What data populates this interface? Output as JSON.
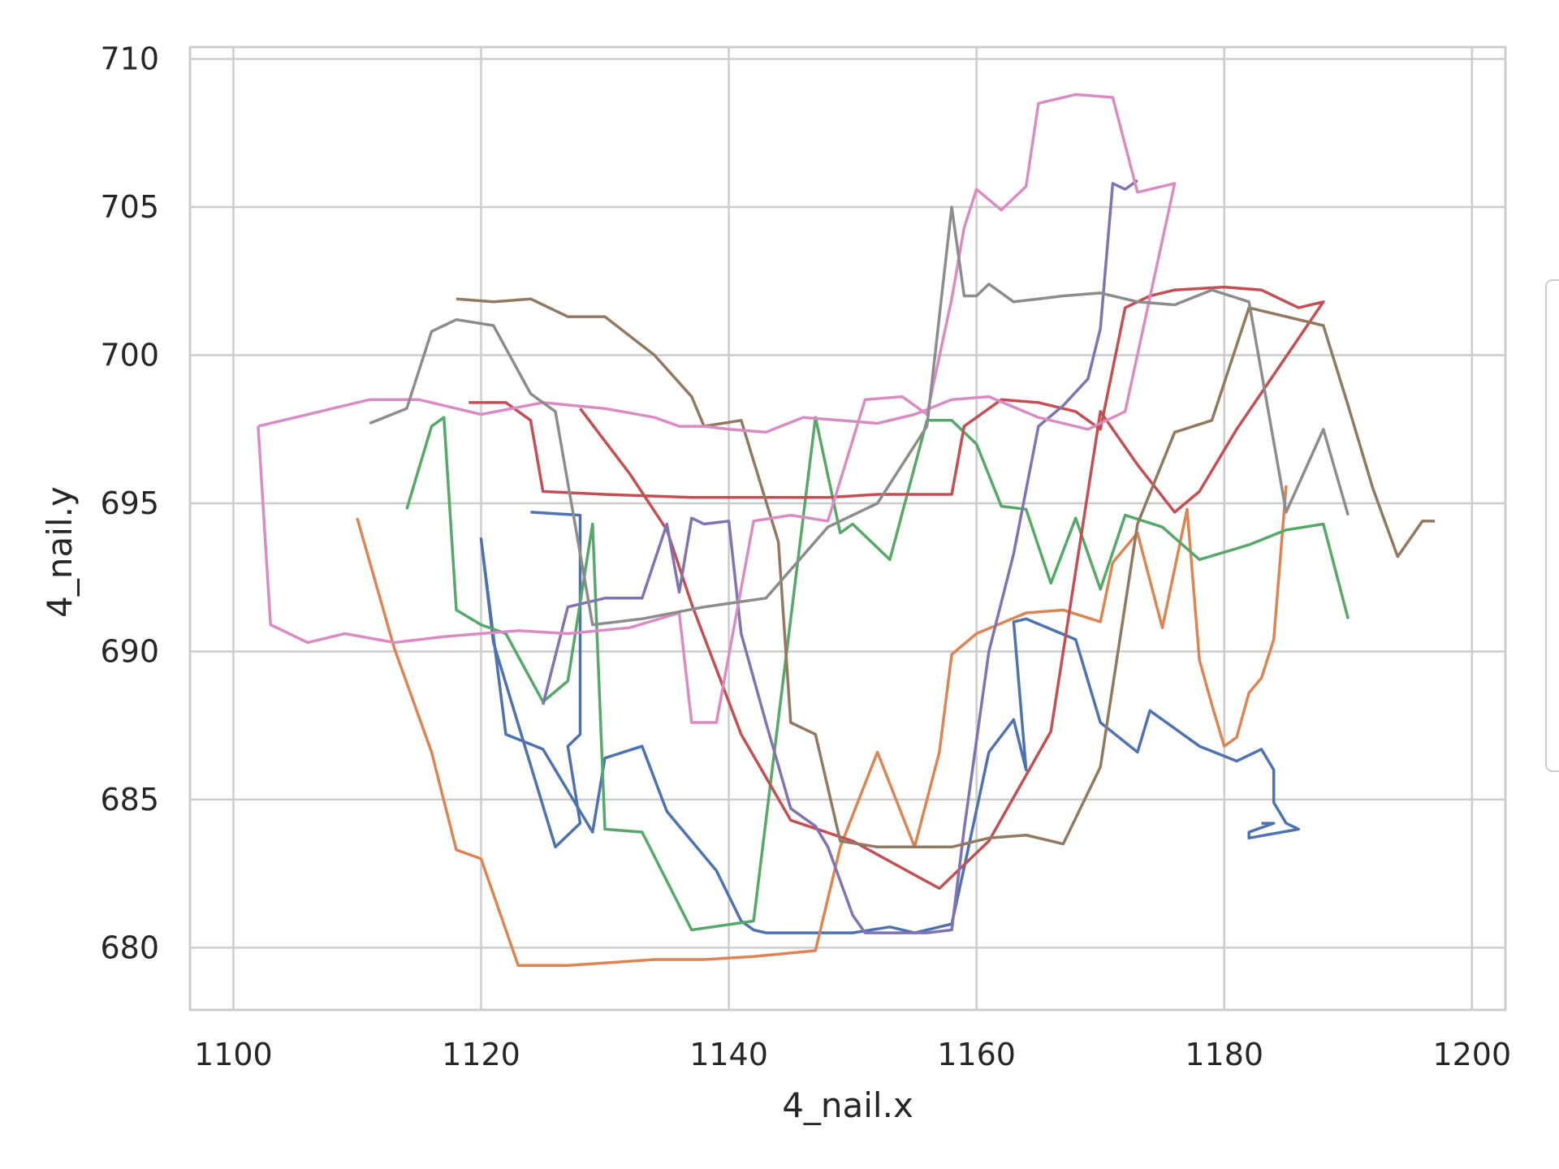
{
  "chart_data": {
    "type": "line",
    "title": "",
    "xlabel": "4_nail.x",
    "ylabel": "4_nail.y",
    "xlim": [
      1096.5,
      1202.7
    ],
    "ylim": [
      677.9,
      710.4
    ],
    "xticks": [
      1100,
      1120,
      1140,
      1160,
      1180,
      1200
    ],
    "yticks": [
      680,
      685,
      690,
      695,
      700,
      705,
      710
    ],
    "grid": true,
    "legend": "right (clipped, entries not visible)",
    "series": [
      {
        "color": "#4c72b0",
        "x": [
          1124,
          1128,
          1128,
          1127,
          1128,
          1126,
          1121,
          1120,
          1122,
          1125,
          1129,
          1130,
          1133,
          1135,
          1139,
          1141,
          1142,
          1143,
          1147,
          1148,
          1150,
          1153,
          1155,
          1158,
          1159,
          1161,
          1163,
          1164,
          1163,
          1164,
          1168,
          1170,
          1173,
          1174,
          1178,
          1181,
          1183,
          1184,
          1184,
          1185,
          1186,
          1182,
          1182,
          1184,
          1183
        ],
        "y": [
          694.7,
          694.6,
          687.2,
          686.8,
          684.2,
          683.4,
          690.3,
          693.8,
          687.2,
          686.7,
          683.9,
          686.4,
          686.8,
          684.6,
          682.6,
          680.9,
          680.6,
          680.5,
          680.5,
          680.5,
          680.5,
          680.7,
          680.5,
          680.8,
          682.7,
          686.6,
          687.7,
          686.0,
          691.0,
          691.1,
          690.4,
          687.6,
          686.6,
          688.0,
          686.8,
          686.3,
          686.7,
          686.0,
          684.9,
          684.2,
          684.0,
          683.7,
          683.9,
          684.2,
          684.2
        ]
      },
      {
        "color": "#dd8452",
        "x": [
          1110,
          1113,
          1116,
          1118,
          1120,
          1123,
          1127,
          1134,
          1138,
          1142,
          1147,
          1149,
          1152,
          1155,
          1157,
          1158,
          1160,
          1164,
          1167,
          1170,
          1171,
          1173,
          1175,
          1177,
          1178,
          1179,
          1180,
          1181,
          1182,
          1183,
          1184,
          1185
        ],
        "y": [
          694.5,
          690.1,
          686.6,
          683.3,
          683.0,
          679.4,
          679.4,
          679.6,
          679.6,
          679.7,
          679.9,
          683.4,
          686.6,
          683.4,
          686.6,
          689.9,
          690.6,
          691.3,
          691.4,
          691.0,
          693.0,
          694.0,
          690.8,
          694.8,
          689.7,
          688.2,
          686.8,
          687.1,
          688.6,
          689.1,
          690.4,
          695.6
        ]
      },
      {
        "color": "#55a868",
        "x": [
          1114,
          1116,
          1117,
          1118,
          1120,
          1122,
          1125,
          1127,
          1129,
          1130,
          1133,
          1137,
          1142,
          1147,
          1149,
          1150,
          1153,
          1156,
          1158,
          1160,
          1162,
          1164,
          1166,
          1168,
          1170,
          1172,
          1175,
          1178,
          1182,
          1185,
          1188,
          1190
        ],
        "y": [
          694.8,
          697.6,
          697.9,
          691.4,
          690.9,
          690.6,
          688.3,
          689.0,
          694.3,
          684.0,
          683.9,
          680.6,
          680.9,
          697.9,
          694.0,
          694.3,
          693.1,
          697.8,
          697.8,
          697.0,
          694.9,
          694.8,
          692.3,
          694.5,
          692.1,
          694.6,
          694.2,
          693.1,
          693.6,
          694.1,
          694.3,
          691.1
        ]
      },
      {
        "color": "#c44e52",
        "x": [
          1119,
          1122,
          1124,
          1125,
          1130,
          1137,
          1141,
          1148,
          1152,
          1158,
          1159,
          1162,
          1165,
          1168,
          1170,
          1172,
          1174,
          1176,
          1180,
          1183,
          1185,
          1186,
          1188,
          1181,
          1178,
          1176,
          1173,
          1170,
          1166,
          1161,
          1157,
          1150,
          1145,
          1141,
          1137,
          1135,
          1132,
          1128
        ],
        "y": [
          698.4,
          698.4,
          697.8,
          695.4,
          695.3,
          695.2,
          695.2,
          695.2,
          695.3,
          695.3,
          697.6,
          698.5,
          698.4,
          698.1,
          697.5,
          701.6,
          702.0,
          702.2,
          702.3,
          702.2,
          701.8,
          701.6,
          701.8,
          697.5,
          695.4,
          694.7,
          696.3,
          698.1,
          687.3,
          683.6,
          682.0,
          683.6,
          684.3,
          687.2,
          691.6,
          694.1,
          696.0,
          698.2
        ]
      },
      {
        "color": "#8172b3",
        "x": [
          1125,
          1127,
          1130,
          1133,
          1135,
          1136,
          1137,
          1138,
          1140,
          1141,
          1143,
          1145,
          1147,
          1148,
          1150,
          1151,
          1153,
          1154,
          1156,
          1158,
          1159,
          1161,
          1163,
          1165,
          1167,
          1169,
          1170,
          1171,
          1172,
          1173
        ],
        "y": [
          688.2,
          691.5,
          691.8,
          691.8,
          694.3,
          692.0,
          694.5,
          694.3,
          694.4,
          690.6,
          687.6,
          684.7,
          684.1,
          683.4,
          681.1,
          680.5,
          680.5,
          680.5,
          680.5,
          680.6,
          684.0,
          690.0,
          693.3,
          697.6,
          698.3,
          699.2,
          700.9,
          705.8,
          705.6,
          705.9
        ]
      },
      {
        "color": "#937860",
        "x": [
          1118,
          1121,
          1124,
          1127,
          1130,
          1134,
          1137,
          1138,
          1141,
          1144,
          1145,
          1147,
          1149,
          1152,
          1155,
          1158,
          1161,
          1164,
          1167,
          1170,
          1173,
          1176,
          1179,
          1182,
          1185,
          1188,
          1190,
          1192,
          1194,
          1196,
          1197
        ],
        "y": [
          701.9,
          701.8,
          701.9,
          701.3,
          701.3,
          700.0,
          698.6,
          697.6,
          697.8,
          693.7,
          687.6,
          687.2,
          683.6,
          683.4,
          683.4,
          683.4,
          683.7,
          683.8,
          683.5,
          686.1,
          694.3,
          697.4,
          697.8,
          701.6,
          701.3,
          701.0,
          698.3,
          695.5,
          693.2,
          694.4,
          694.4
        ]
      },
      {
        "color": "#da8bc3",
        "x": [
          1102,
          1103,
          1106,
          1109,
          1113,
          1117,
          1120,
          1123,
          1127,
          1132,
          1136,
          1137,
          1139,
          1142,
          1145,
          1148,
          1151,
          1154,
          1156,
          1158,
          1159,
          1160,
          1162,
          1164,
          1165,
          1168,
          1171,
          1173,
          1176,
          1172,
          1169,
          1165,
          1161,
          1158,
          1155,
          1152,
          1149,
          1146,
          1143,
          1140,
          1138,
          1136,
          1134,
          1130,
          1125,
          1120,
          1115,
          1111,
          1108,
          1105,
          1102
        ],
        "y": [
          697.6,
          690.9,
          690.3,
          690.6,
          690.3,
          690.5,
          690.6,
          690.7,
          690.6,
          690.8,
          691.3,
          687.6,
          687.6,
          694.4,
          694.6,
          694.4,
          698.5,
          698.6,
          698.0,
          701.9,
          704.3,
          705.6,
          704.9,
          705.7,
          708.5,
          708.8,
          708.7,
          705.5,
          705.8,
          698.1,
          697.5,
          697.9,
          698.6,
          698.5,
          698.0,
          697.7,
          697.8,
          697.9,
          697.4,
          697.5,
          697.6,
          697.6,
          697.9,
          698.2,
          698.4,
          698.0,
          698.5,
          698.5,
          698.2,
          697.9,
          697.6
        ]
      },
      {
        "color": "#8c8c8c",
        "x": [
          1111,
          1114,
          1116,
          1118,
          1121,
          1124,
          1126,
          1129,
          1133,
          1138,
          1143,
          1148,
          1152,
          1156,
          1158,
          1159,
          1160,
          1161,
          1163,
          1165,
          1167,
          1170,
          1173,
          1176,
          1179,
          1182,
          1185,
          1188,
          1190
        ],
        "y": [
          697.7,
          698.2,
          700.8,
          701.2,
          701.0,
          698.7,
          698.1,
          690.9,
          691.1,
          691.5,
          691.8,
          694.2,
          695.0,
          697.6,
          705.0,
          702.0,
          702.0,
          702.4,
          701.8,
          701.9,
          702.0,
          702.1,
          701.8,
          701.7,
          702.2,
          701.8,
          694.7,
          697.5,
          694.6
        ]
      }
    ]
  }
}
